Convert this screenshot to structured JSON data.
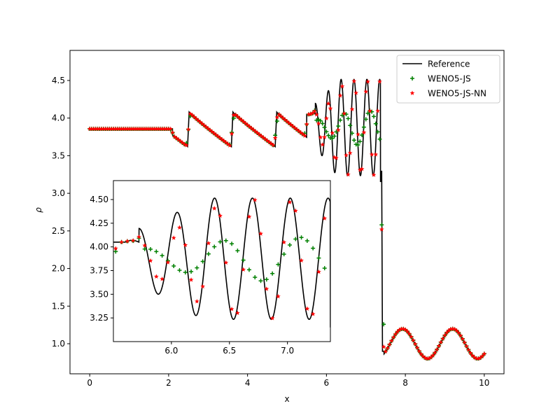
{
  "chart_data": [
    {
      "type": "line",
      "role": "main",
      "xlabel": "x",
      "ylabel": "ρ",
      "xlim": [
        -0.5,
        10.5
      ],
      "ylim": [
        0.6,
        4.9
      ],
      "xticks": [
        0,
        2,
        4,
        6,
        8,
        10
      ],
      "yticks": [
        1.0,
        1.5,
        2.0,
        2.5,
        3.0,
        3.5,
        4.0,
        4.5
      ],
      "xtick_labels": [
        "0",
        "2",
        "4",
        "6",
        "8",
        "10"
      ],
      "ytick_labels": [
        "1.0",
        "1.5",
        "2.0",
        "2.5",
        "3.0",
        "3.5",
        "4.0",
        "4.5"
      ],
      "grid": false,
      "legend_position": "top-right",
      "series": [
        {
          "name": "Reference",
          "style": "line",
          "color": "#000000"
        },
        {
          "name": "WENO5-JS",
          "style": "plus-markers",
          "color": "#008000"
        },
        {
          "name": "WENO5-JS-NN",
          "style": "star-markers",
          "color": "#ff0000"
        }
      ]
    },
    {
      "type": "line",
      "role": "inset",
      "xlim": [
        5.5,
        7.37
      ],
      "ylim": [
        3.0,
        4.7
      ],
      "xticks": [
        6.0,
        6.5,
        7.0
      ],
      "yticks": [
        3.25,
        3.5,
        3.75,
        4.0,
        4.25,
        4.5
      ],
      "xtick_labels": [
        "6.0",
        "6.5",
        "7.0"
      ],
      "ytick_labels": [
        "3.25",
        "3.50",
        "3.75",
        "4.00",
        "4.25",
        "4.50"
      ],
      "grid": false
    }
  ]
}
